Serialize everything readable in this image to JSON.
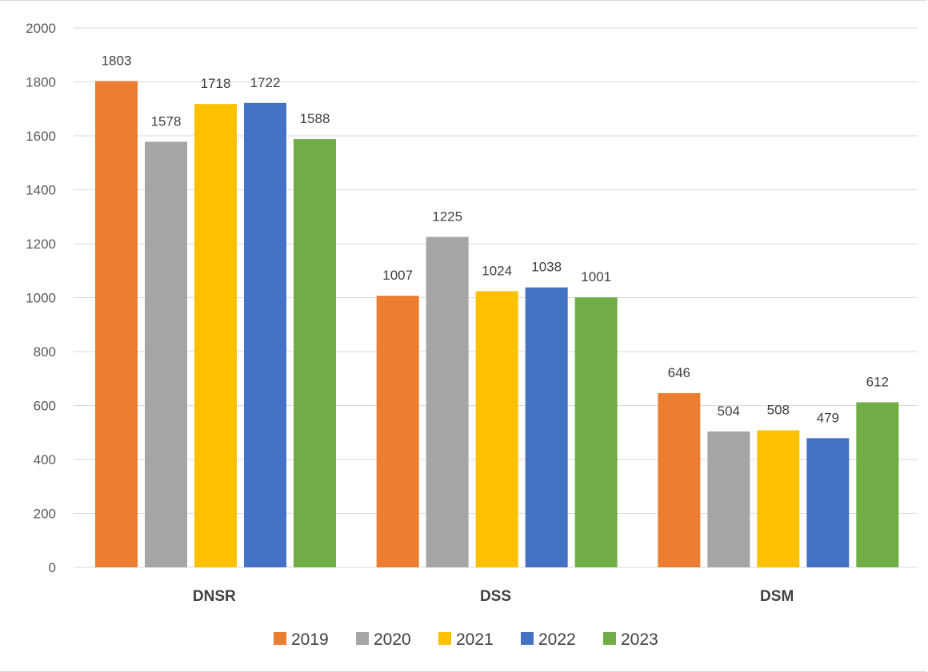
{
  "chart_data": {
    "type": "bar",
    "title": "",
    "xlabel": "",
    "ylabel": "",
    "categories": [
      "DNSR",
      "DSS",
      "DSM"
    ],
    "series": [
      {
        "name": "2019",
        "color": "#ED7D31",
        "values": [
          1803,
          1007,
          646
        ]
      },
      {
        "name": "2020",
        "color": "#A5A5A5",
        "values": [
          1578,
          1225,
          504
        ]
      },
      {
        "name": "2021",
        "color": "#FFC000",
        "values": [
          1718,
          1024,
          508
        ]
      },
      {
        "name": "2022",
        "color": "#4472C4",
        "values": [
          1722,
          1038,
          479
        ]
      },
      {
        "name": "2023",
        "color": "#70AD47",
        "values": [
          1588,
          1001,
          612
        ]
      }
    ],
    "ylim": [
      0,
      2000
    ],
    "yticks": [
      0,
      200,
      400,
      600,
      800,
      1000,
      1200,
      1400,
      1600,
      1800,
      2000
    ],
    "grid": true,
    "legend_position": "bottom"
  }
}
